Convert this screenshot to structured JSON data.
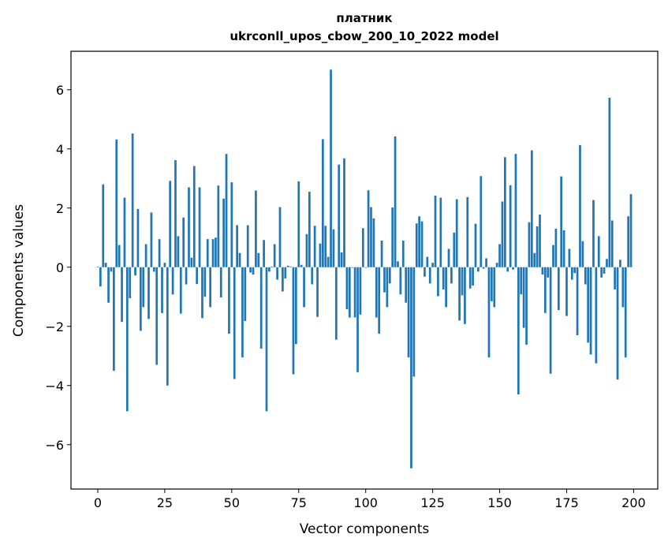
{
  "chart_data": {
    "type": "bar",
    "title": "платник",
    "subtitle": "ukrconll_upos_cbow_200_10_2022 model",
    "xlabel": "Vector components",
    "ylabel": "Components values",
    "xlim": [
      -10,
      209
    ],
    "ylim": [
      -7.5,
      7.3
    ],
    "xticks": [
      0,
      25,
      50,
      75,
      100,
      125,
      150,
      175,
      200
    ],
    "yticks": [
      -6,
      -4,
      -2,
      0,
      2,
      4,
      6
    ],
    "ytick_labels": [
      "−6",
      "−4",
      "−2",
      "0",
      "2",
      "4",
      "6"
    ],
    "grid": false,
    "bar_color": "#1f77b4",
    "x": [
      0,
      1,
      2,
      3,
      4,
      5,
      6,
      7,
      8,
      9,
      10,
      11,
      12,
      13,
      14,
      15,
      16,
      17,
      18,
      19,
      20,
      21,
      22,
      23,
      24,
      25,
      26,
      27,
      28,
      29,
      30,
      31,
      32,
      33,
      34,
      35,
      36,
      37,
      38,
      39,
      40,
      41,
      42,
      43,
      44,
      45,
      46,
      47,
      48,
      49,
      50,
      51,
      52,
      53,
      54,
      55,
      56,
      57,
      58,
      59,
      60,
      61,
      62,
      63,
      64,
      65,
      66,
      67,
      68,
      69,
      70,
      71,
      72,
      73,
      74,
      75,
      76,
      77,
      78,
      79,
      80,
      81,
      82,
      83,
      84,
      85,
      86,
      87,
      88,
      89,
      90,
      91,
      92,
      93,
      94,
      95,
      96,
      97,
      98,
      99,
      100,
      101,
      102,
      103,
      104,
      105,
      106,
      107,
      108,
      109,
      110,
      111,
      112,
      113,
      114,
      115,
      116,
      117,
      118,
      119,
      120,
      121,
      122,
      123,
      124,
      125,
      126,
      127,
      128,
      129,
      130,
      131,
      132,
      133,
      134,
      135,
      136,
      137,
      138,
      139,
      140,
      141,
      142,
      143,
      144,
      145,
      146,
      147,
      148,
      149,
      150,
      151,
      152,
      153,
      154,
      155,
      156,
      157,
      158,
      159,
      160,
      161,
      162,
      163,
      164,
      165,
      166,
      167,
      168,
      169,
      170,
      171,
      172,
      173,
      174,
      175,
      176,
      177,
      178,
      179,
      180,
      181,
      182,
      183,
      184,
      185,
      186,
      187,
      188,
      189,
      190,
      191,
      192,
      193,
      194,
      195,
      196,
      197,
      198,
      199
    ],
    "values": [
      0.02,
      -0.65,
      2.8,
      0.15,
      -1.2,
      -0.15,
      -3.5,
      4.32,
      0.75,
      -1.85,
      2.35,
      -4.87,
      -1.05,
      4.52,
      -0.28,
      1.97,
      -2.15,
      -1.35,
      0.78,
      -1.75,
      1.85,
      -0.15,
      -3.3,
      0.95,
      -1.55,
      0.15,
      -4.0,
      2.92,
      -0.92,
      3.62,
      1.05,
      -1.57,
      1.68,
      -0.58,
      2.7,
      0.32,
      3.42,
      -0.57,
      2.7,
      -1.72,
      -1.0,
      0.95,
      -1.35,
      0.95,
      1.0,
      2.76,
      -1.02,
      2.32,
      3.83,
      -2.25,
      2.87,
      -3.78,
      1.42,
      0.48,
      -3.05,
      -1.82,
      1.42,
      -0.18,
      -0.25,
      2.59,
      0.48,
      -2.75,
      0.92,
      -4.87,
      -0.15,
      0.02,
      0.78,
      -0.42,
      2.03,
      -0.82,
      -0.38,
      0.05,
      0.02,
      -3.62,
      -2.6,
      2.9,
      0.08,
      -1.35,
      1.12,
      2.55,
      -0.58,
      1.4,
      -1.68,
      0.8,
      4.33,
      1.4,
      0.35,
      6.68,
      1.28,
      -2.45,
      3.47,
      0.5,
      3.68,
      -1.42,
      -1.7,
      -0.02,
      -1.7,
      -3.55,
      -1.6,
      1.32,
      -0.02,
      2.6,
      2.03,
      1.65,
      -1.7,
      -2.25,
      0.9,
      -0.85,
      -1.35,
      -0.55,
      2.02,
      4.42,
      0.2,
      -0.92,
      0.9,
      -1.2,
      -3.05,
      -6.8,
      -3.7,
      1.48,
      1.72,
      1.55,
      -0.32,
      0.35,
      -0.55,
      0.15,
      2.42,
      -0.98,
      2.35,
      -0.75,
      -1.35,
      0.62,
      -0.55,
      1.17,
      2.3,
      -1.8,
      -0.95,
      -1.92,
      2.37,
      -0.72,
      -0.62,
      1.47,
      -0.15,
      3.08,
      -0.05,
      0.3,
      -3.05,
      -1.15,
      -1.35,
      0.15,
      0.78,
      2.22,
      3.72,
      -0.15,
      2.77,
      -0.08,
      3.83,
      -4.3,
      -0.92,
      -2.05,
      -2.62,
      1.52,
      3.95,
      0.48,
      1.38,
      1.78,
      -0.25,
      -1.55,
      -0.35,
      -3.6,
      0.75,
      1.3,
      -1.45,
      3.07,
      1.25,
      -1.65,
      0.62,
      -0.42,
      -0.2,
      -2.3,
      4.13,
      0.88,
      -0.58,
      -2.55,
      -2.95,
      2.27,
      -3.25,
      1.05,
      -0.35,
      -0.22,
      0.28,
      5.73,
      1.58,
      -0.75,
      -3.8,
      0.25,
      -1.35,
      -3.05,
      1.72,
      2.47
    ]
  }
}
